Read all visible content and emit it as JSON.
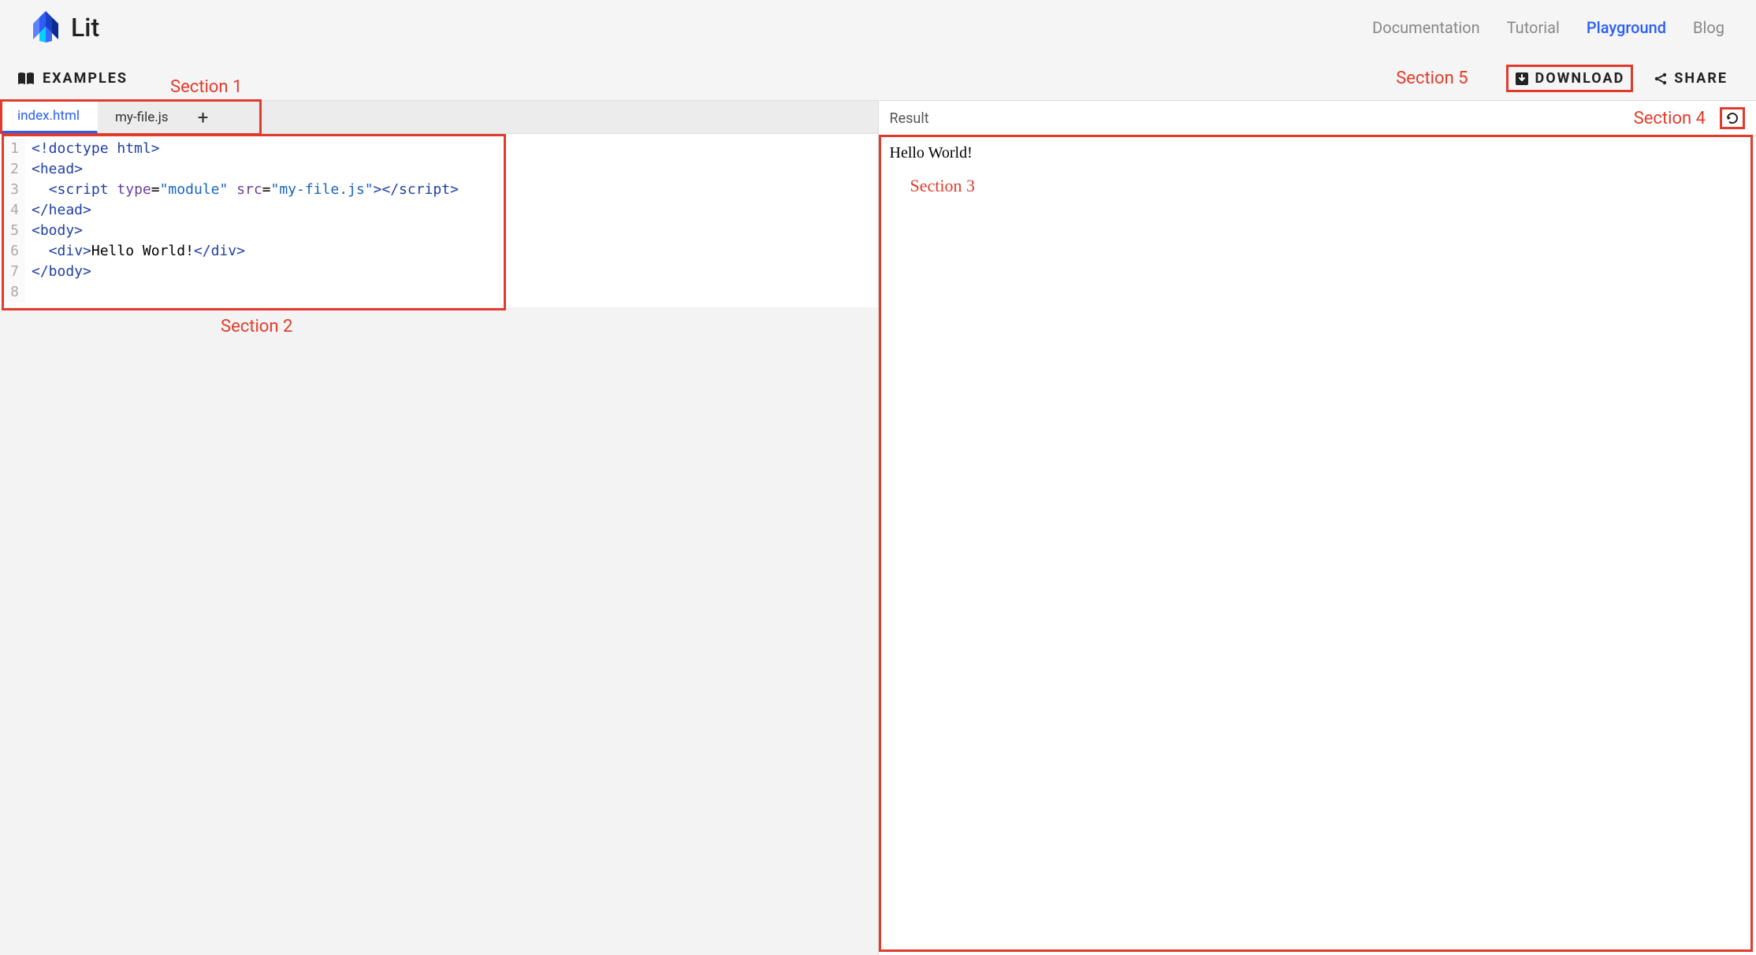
{
  "brand": {
    "name": "Lit"
  },
  "nav": {
    "items": [
      {
        "label": "Documentation",
        "active": false
      },
      {
        "label": "Tutorial",
        "active": false
      },
      {
        "label": "Playground",
        "active": true
      },
      {
        "label": "Blog",
        "active": false
      }
    ]
  },
  "subbar": {
    "examples_label": "EXAMPLES",
    "download_label": "DOWNLOAD",
    "share_label": "SHARE"
  },
  "tabs": {
    "items": [
      {
        "label": "index.html",
        "active": true
      },
      {
        "label": "my-file.js",
        "active": false
      }
    ],
    "add_label": "+"
  },
  "editor": {
    "lines": [
      {
        "n": "1",
        "html": "<span class='tok-tag'>&lt;!doctype html&gt;</span>"
      },
      {
        "n": "2",
        "html": "<span class='tok-tag'>&lt;head&gt;</span>"
      },
      {
        "n": "3",
        "html": "  <span class='tok-tag'>&lt;script</span> <span class='tok-attr'>type</span>=<span class='tok-str'>\"module\"</span> <span class='tok-attr'>src</span>=<span class='tok-str'>\"my-file.js\"</span><span class='tok-tag'>&gt;&lt;/script&gt;</span>"
      },
      {
        "n": "4",
        "html": "<span class='tok-tag'>&lt;/head&gt;</span>"
      },
      {
        "n": "5",
        "html": "<span class='tok-tag'>&lt;body&gt;</span>"
      },
      {
        "n": "6",
        "html": "  <span class='tok-tag'>&lt;div&gt;</span>Hello World!<span class='tok-tag'>&lt;/div&gt;</span>"
      },
      {
        "n": "7",
        "html": "<span class='tok-tag'>&lt;/body&gt;</span>"
      },
      {
        "n": "8",
        "html": ""
      }
    ]
  },
  "result": {
    "header_label": "Result",
    "output": "Hello World!"
  },
  "annotations": {
    "s1": "Section 1",
    "s2": "Section 2",
    "s3": "Section 3",
    "s4": "Section 4",
    "s5": "Section 5",
    "color": "#e13b2b"
  },
  "colors": {
    "accent": "#2a5ef7",
    "nav_inactive": "#888888",
    "annotation": "#e13b2b",
    "code_tag": "#1f3fa5",
    "code_attr": "#6b3f9e",
    "code_str": "#1565c0",
    "background": "#f5f5f5"
  }
}
